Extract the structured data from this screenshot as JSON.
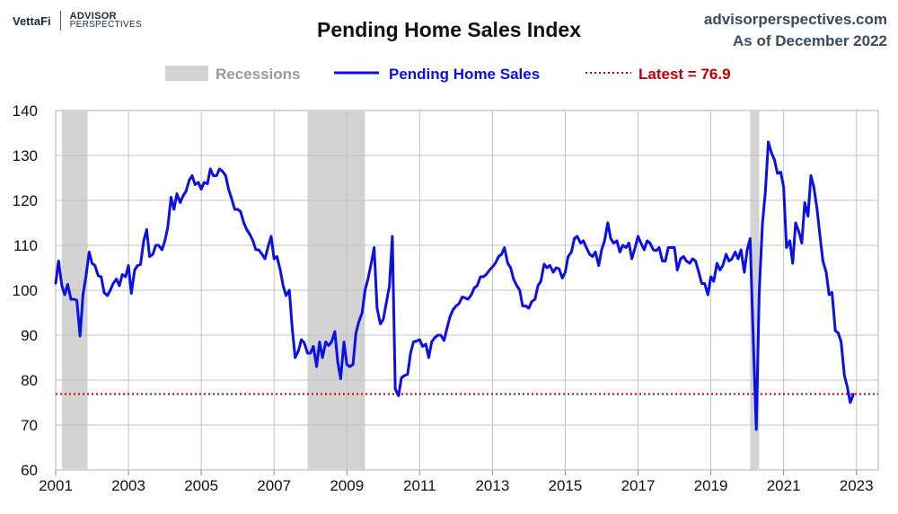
{
  "brand": {
    "vettafi": "VettaFi",
    "advisor": "ADVISOR",
    "perspectives": "PERSPECTIVES"
  },
  "header": {
    "title": "Pending Home Sales Index",
    "source": "advisorperspectives.com",
    "date": "As of December 2022"
  },
  "colors": {
    "series": "#0a10e6",
    "latest": "#c00000",
    "recession": "#d3d3d3",
    "grid": "#c0c0c0",
    "legend_recession_text": "#9a9a9a"
  },
  "chart_data": {
    "type": "line",
    "title": "Pending Home Sales Index",
    "xlabel": "",
    "ylabel": "",
    "xlim": [
      2001,
      2023.6
    ],
    "ylim": [
      60,
      140
    ],
    "yticks": [
      60,
      70,
      80,
      90,
      100,
      110,
      120,
      130,
      140
    ],
    "xticks": [
      2001,
      2003,
      2005,
      2007,
      2009,
      2011,
      2013,
      2015,
      2017,
      2019,
      2021,
      2023
    ],
    "grid": true,
    "legend_position": "top",
    "legend": {
      "recessions": "Recessions",
      "series": "Pending Home Sales",
      "latest": "Latest = 76.9"
    },
    "recessions": [
      [
        2001.17,
        2001.88
      ],
      [
        2007.92,
        2009.5
      ],
      [
        2020.08,
        2020.33
      ]
    ],
    "latest_value": 76.9,
    "series": [
      {
        "name": "Pending Home Sales",
        "points": [
          [
            2001.0,
            101.5
          ],
          [
            2001.08,
            106.5
          ],
          [
            2001.17,
            101.0
          ],
          [
            2001.25,
            99.0
          ],
          [
            2001.33,
            101.3
          ],
          [
            2001.42,
            98.0
          ],
          [
            2001.5,
            98.0
          ],
          [
            2001.58,
            97.8
          ],
          [
            2001.67,
            89.8
          ],
          [
            2001.75,
            99.0
          ],
          [
            2001.83,
            103.0
          ],
          [
            2001.92,
            108.5
          ],
          [
            2002.0,
            106.0
          ],
          [
            2002.08,
            105.5
          ],
          [
            2002.17,
            103.2
          ],
          [
            2002.25,
            103.0
          ],
          [
            2002.33,
            99.5
          ],
          [
            2002.42,
            98.8
          ],
          [
            2002.5,
            100.0
          ],
          [
            2002.58,
            101.5
          ],
          [
            2002.67,
            102.5
          ],
          [
            2002.75,
            101.0
          ],
          [
            2002.83,
            103.5
          ],
          [
            2002.92,
            103.0
          ],
          [
            2003.0,
            105.5
          ],
          [
            2003.08,
            99.3
          ],
          [
            2003.17,
            104.5
          ],
          [
            2003.25,
            105.5
          ],
          [
            2003.33,
            105.7
          ],
          [
            2003.42,
            111.0
          ],
          [
            2003.5,
            113.5
          ],
          [
            2003.58,
            107.5
          ],
          [
            2003.67,
            108.0
          ],
          [
            2003.75,
            110.0
          ],
          [
            2003.83,
            110.0
          ],
          [
            2003.92,
            109.0
          ],
          [
            2004.0,
            111.0
          ],
          [
            2004.08,
            114.0
          ],
          [
            2004.17,
            120.7
          ],
          [
            2004.25,
            118.0
          ],
          [
            2004.33,
            121.5
          ],
          [
            2004.42,
            119.5
          ],
          [
            2004.5,
            121.0
          ],
          [
            2004.58,
            122.0
          ],
          [
            2004.67,
            124.5
          ],
          [
            2004.75,
            125.5
          ],
          [
            2004.83,
            123.5
          ],
          [
            2004.92,
            124.0
          ],
          [
            2005.0,
            122.5
          ],
          [
            2005.08,
            124.0
          ],
          [
            2005.17,
            123.7
          ],
          [
            2005.25,
            127.0
          ],
          [
            2005.33,
            125.5
          ],
          [
            2005.42,
            125.5
          ],
          [
            2005.5,
            127.0
          ],
          [
            2005.58,
            126.5
          ],
          [
            2005.67,
            125.5
          ],
          [
            2005.75,
            122.5
          ],
          [
            2005.83,
            120.5
          ],
          [
            2005.92,
            118.0
          ],
          [
            2006.0,
            118.0
          ],
          [
            2006.08,
            117.5
          ],
          [
            2006.17,
            115.0
          ],
          [
            2006.25,
            113.5
          ],
          [
            2006.33,
            112.5
          ],
          [
            2006.42,
            111.0
          ],
          [
            2006.5,
            109.0
          ],
          [
            2006.58,
            109.0
          ],
          [
            2006.67,
            108.0
          ],
          [
            2006.75,
            107.0
          ],
          [
            2006.83,
            109.5
          ],
          [
            2006.92,
            112.0
          ],
          [
            2007.0,
            107.0
          ],
          [
            2007.08,
            107.5
          ],
          [
            2007.17,
            104.5
          ],
          [
            2007.25,
            101.0
          ],
          [
            2007.33,
            98.8
          ],
          [
            2007.42,
            100.0
          ],
          [
            2007.5,
            91.5
          ],
          [
            2007.58,
            85.0
          ],
          [
            2007.67,
            86.5
          ],
          [
            2007.75,
            89.0
          ],
          [
            2007.83,
            88.3
          ],
          [
            2007.92,
            86.0
          ],
          [
            2008.0,
            86.0
          ],
          [
            2008.08,
            87.5
          ],
          [
            2008.17,
            83.0
          ],
          [
            2008.25,
            88.5
          ],
          [
            2008.33,
            85.0
          ],
          [
            2008.42,
            88.5
          ],
          [
            2008.5,
            87.7
          ],
          [
            2008.58,
            88.5
          ],
          [
            2008.67,
            90.8
          ],
          [
            2008.75,
            84.0
          ],
          [
            2008.83,
            80.3
          ],
          [
            2008.92,
            88.5
          ],
          [
            2009.0,
            83.5
          ],
          [
            2009.08,
            83.0
          ],
          [
            2009.17,
            83.5
          ],
          [
            2009.25,
            90.5
          ],
          [
            2009.33,
            93.0
          ],
          [
            2009.42,
            95.0
          ],
          [
            2009.5,
            100.0
          ],
          [
            2009.58,
            102.5
          ],
          [
            2009.67,
            106.0
          ],
          [
            2009.75,
            109.5
          ],
          [
            2009.83,
            96.0
          ],
          [
            2009.92,
            92.5
          ],
          [
            2010.0,
            93.5
          ],
          [
            2010.08,
            97.0
          ],
          [
            2010.17,
            101.0
          ],
          [
            2010.25,
            112.0
          ],
          [
            2010.33,
            78.0
          ],
          [
            2010.42,
            76.5
          ],
          [
            2010.5,
            80.5
          ],
          [
            2010.58,
            81.0
          ],
          [
            2010.67,
            81.3
          ],
          [
            2010.75,
            86.0
          ],
          [
            2010.83,
            88.5
          ],
          [
            2010.92,
            88.7
          ],
          [
            2011.0,
            89.0
          ],
          [
            2011.08,
            87.5
          ],
          [
            2011.17,
            88.0
          ],
          [
            2011.25,
            85.0
          ],
          [
            2011.33,
            88.5
          ],
          [
            2011.42,
            89.5
          ],
          [
            2011.5,
            90.0
          ],
          [
            2011.58,
            90.0
          ],
          [
            2011.67,
            88.8
          ],
          [
            2011.75,
            91.5
          ],
          [
            2011.83,
            94.0
          ],
          [
            2011.92,
            95.7
          ],
          [
            2012.0,
            96.5
          ],
          [
            2012.08,
            97.0
          ],
          [
            2012.17,
            98.5
          ],
          [
            2012.25,
            98.3
          ],
          [
            2012.33,
            98.0
          ],
          [
            2012.42,
            99.0
          ],
          [
            2012.5,
            100.5
          ],
          [
            2012.58,
            101.0
          ],
          [
            2012.67,
            103.0
          ],
          [
            2012.75,
            103.0
          ],
          [
            2012.83,
            103.5
          ],
          [
            2012.92,
            104.5
          ],
          [
            2013.0,
            105.2
          ],
          [
            2013.08,
            106.0
          ],
          [
            2013.17,
            107.5
          ],
          [
            2013.25,
            108.0
          ],
          [
            2013.33,
            109.5
          ],
          [
            2013.42,
            106.0
          ],
          [
            2013.5,
            105.0
          ],
          [
            2013.58,
            102.5
          ],
          [
            2013.67,
            101.0
          ],
          [
            2013.75,
            100.0
          ],
          [
            2013.83,
            96.5
          ],
          [
            2013.92,
            96.5
          ],
          [
            2014.0,
            96.0
          ],
          [
            2014.08,
            97.5
          ],
          [
            2014.17,
            98.0
          ],
          [
            2014.25,
            101.0
          ],
          [
            2014.33,
            102.0
          ],
          [
            2014.42,
            105.8
          ],
          [
            2014.5,
            105.0
          ],
          [
            2014.58,
            105.5
          ],
          [
            2014.67,
            104.0
          ],
          [
            2014.75,
            105.0
          ],
          [
            2014.83,
            104.8
          ],
          [
            2014.92,
            102.7
          ],
          [
            2015.0,
            104.0
          ],
          [
            2015.08,
            107.5
          ],
          [
            2015.17,
            108.5
          ],
          [
            2015.25,
            111.5
          ],
          [
            2015.33,
            112.0
          ],
          [
            2015.42,
            110.5
          ],
          [
            2015.5,
            111.0
          ],
          [
            2015.58,
            109.5
          ],
          [
            2015.67,
            108.0
          ],
          [
            2015.75,
            107.5
          ],
          [
            2015.83,
            108.5
          ],
          [
            2015.92,
            105.5
          ],
          [
            2016.0,
            109.0
          ],
          [
            2016.08,
            111.0
          ],
          [
            2016.17,
            115.0
          ],
          [
            2016.25,
            111.5
          ],
          [
            2016.33,
            110.5
          ],
          [
            2016.42,
            111.0
          ],
          [
            2016.5,
            108.5
          ],
          [
            2016.58,
            110.0
          ],
          [
            2016.67,
            109.5
          ],
          [
            2016.75,
            110.5
          ],
          [
            2016.83,
            107.0
          ],
          [
            2016.92,
            109.5
          ],
          [
            2017.0,
            112.0
          ],
          [
            2017.08,
            110.5
          ],
          [
            2017.17,
            109.0
          ],
          [
            2017.25,
            111.0
          ],
          [
            2017.33,
            110.5
          ],
          [
            2017.42,
            109.0
          ],
          [
            2017.5,
            108.8
          ],
          [
            2017.58,
            109.5
          ],
          [
            2017.67,
            106.5
          ],
          [
            2017.75,
            106.5
          ],
          [
            2017.83,
            109.5
          ],
          [
            2017.92,
            109.5
          ],
          [
            2018.0,
            109.5
          ],
          [
            2018.08,
            104.5
          ],
          [
            2018.17,
            107.0
          ],
          [
            2018.25,
            107.5
          ],
          [
            2018.33,
            106.5
          ],
          [
            2018.42,
            106.0
          ],
          [
            2018.5,
            107.0
          ],
          [
            2018.58,
            106.5
          ],
          [
            2018.67,
            104.0
          ],
          [
            2018.75,
            101.5
          ],
          [
            2018.83,
            101.5
          ],
          [
            2018.92,
            99.0
          ],
          [
            2019.0,
            103.0
          ],
          [
            2019.08,
            102.0
          ],
          [
            2019.17,
            106.0
          ],
          [
            2019.25,
            104.5
          ],
          [
            2019.33,
            105.5
          ],
          [
            2019.42,
            108.0
          ],
          [
            2019.5,
            106.5
          ],
          [
            2019.58,
            107.0
          ],
          [
            2019.67,
            108.5
          ],
          [
            2019.75,
            107.0
          ],
          [
            2019.83,
            109.0
          ],
          [
            2019.92,
            104.0
          ],
          [
            2020.0,
            109.0
          ],
          [
            2020.08,
            111.5
          ],
          [
            2020.17,
            88.0
          ],
          [
            2020.25,
            69.0
          ],
          [
            2020.33,
            99.5
          ],
          [
            2020.42,
            115.0
          ],
          [
            2020.5,
            122.0
          ],
          [
            2020.58,
            133.0
          ],
          [
            2020.67,
            130.5
          ],
          [
            2020.75,
            129.0
          ],
          [
            2020.83,
            126.0
          ],
          [
            2020.92,
            126.3
          ],
          [
            2021.0,
            123.0
          ],
          [
            2021.08,
            109.5
          ],
          [
            2021.17,
            111.0
          ],
          [
            2021.25,
            106.0
          ],
          [
            2021.33,
            115.0
          ],
          [
            2021.42,
            113.0
          ],
          [
            2021.5,
            110.5
          ],
          [
            2021.58,
            119.5
          ],
          [
            2021.67,
            116.5
          ],
          [
            2021.75,
            125.5
          ],
          [
            2021.83,
            123.0
          ],
          [
            2021.92,
            118.0
          ],
          [
            2022.0,
            112.0
          ],
          [
            2022.08,
            106.5
          ],
          [
            2022.17,
            104.0
          ],
          [
            2022.25,
            99.0
          ],
          [
            2022.33,
            99.5
          ],
          [
            2022.42,
            91.0
          ],
          [
            2022.5,
            90.5
          ],
          [
            2022.58,
            88.5
          ],
          [
            2022.67,
            81.0
          ],
          [
            2022.75,
            78.5
          ],
          [
            2022.83,
            75.0
          ],
          [
            2022.92,
            76.9
          ]
        ]
      }
    ]
  }
}
